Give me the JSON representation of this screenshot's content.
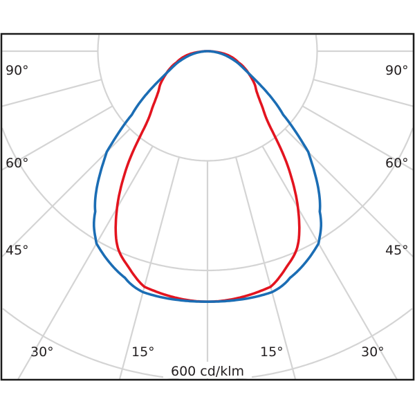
{
  "chart_data": {
    "type": "polar-line",
    "unit_label": "600 cd/klm",
    "rlim": [
      0,
      600
    ],
    "rings": [
      200,
      400,
      600
    ],
    "angle_step": 15,
    "grid": true,
    "angle_labels": {
      "left": [
        "90°",
        "60°",
        "45°",
        "30°",
        "15°"
      ],
      "right": [
        "90°",
        "60°",
        "45°",
        "30°",
        "15°"
      ]
    },
    "series": [
      {
        "color": "#e3141f",
        "angles": [
          0,
          15,
          20,
          25,
          30,
          35,
          40,
          45,
          50,
          55,
          60,
          65,
          70,
          80,
          90
        ],
        "values": [
          457,
          445,
          420,
          390,
          330,
          255,
          175,
          140,
          118,
          105,
          90,
          76,
          60,
          35,
          0
        ]
      },
      {
        "color": "#1b6db4",
        "angles": [
          0,
          15,
          20,
          30,
          35,
          45,
          50,
          60,
          70,
          80,
          90
        ],
        "values": [
          457,
          455,
          440,
          405,
          357,
          260,
          180,
          95,
          55,
          25,
          0
        ]
      }
    ]
  }
}
